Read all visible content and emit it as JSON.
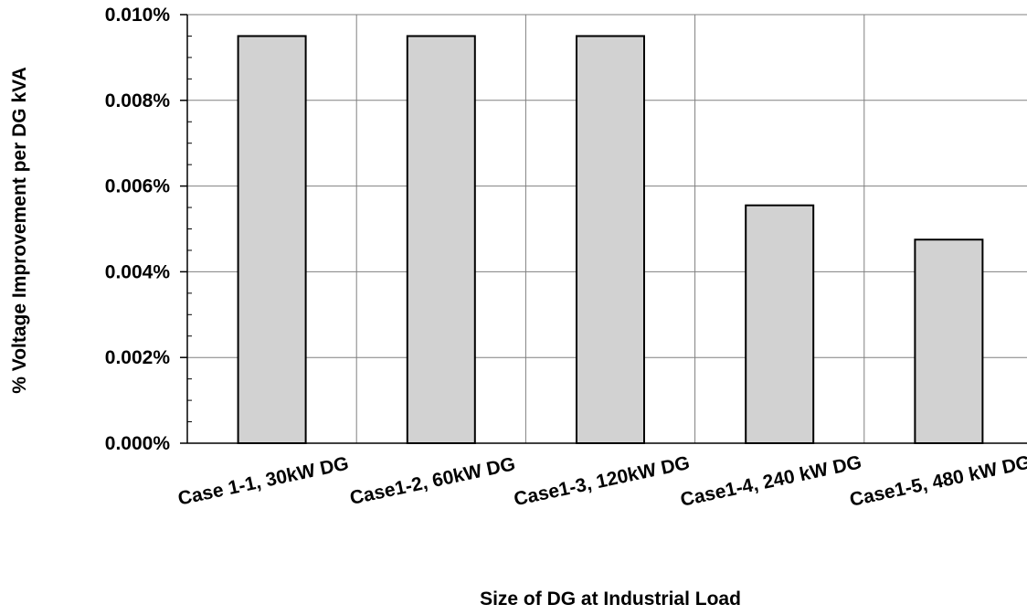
{
  "chart_data": {
    "type": "bar",
    "title": "",
    "xlabel": "Size of DG at Industrial Load",
    "ylabel": "% Voltage Improvement per DG kVA",
    "categories": [
      "Case 1-1, 30kW DG",
      "Case1-2, 60kW DG",
      "Case1-3, 120kW DG",
      "Case1-4, 240 kW DG",
      "Case1-5, 480 kW DG"
    ],
    "values": [
      0.0095,
      0.0095,
      0.0095,
      0.00555,
      0.00475
    ],
    "value_unit": "%",
    "ylim": [
      0,
      0.01
    ],
    "y_ticks": [
      0.0,
      0.002,
      0.004,
      0.006,
      0.008,
      0.01
    ],
    "y_tick_labels": [
      "0.000%",
      "0.002%",
      "0.004%",
      "0.006%",
      "0.008%",
      "0.010%"
    ],
    "grid": true,
    "legend": "none",
    "bar_fill": "#d9d9d9",
    "bar_stroke": "#000000",
    "grid_color": "#808080"
  }
}
